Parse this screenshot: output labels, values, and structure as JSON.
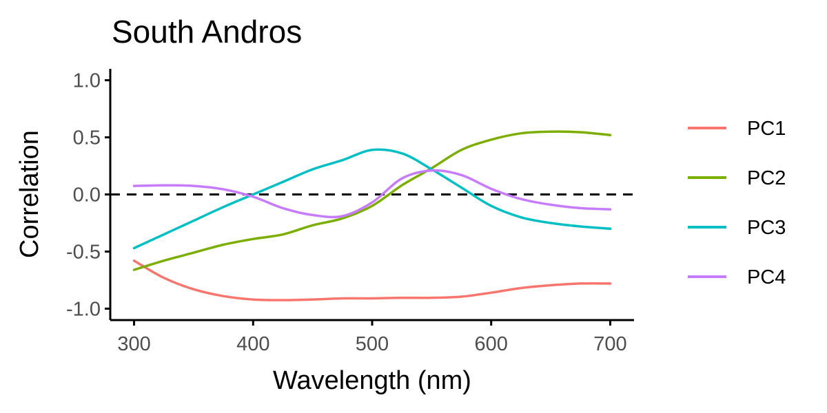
{
  "chart_data": {
    "type": "line",
    "title": "South Andros",
    "xlabel": "Wavelength (nm)",
    "ylabel": "Correlation",
    "xlim": [
      280,
      720
    ],
    "ylim": [
      -1.1,
      1.1
    ],
    "x_ticks": [
      300,
      400,
      500,
      600,
      700
    ],
    "x_tick_labels": [
      "300",
      "400",
      "500",
      "600",
      "700"
    ],
    "y_ticks": [
      1.0,
      0.5,
      0.0,
      -0.5,
      -1.0
    ],
    "y_tick_labels": [
      "1.0",
      "0.5",
      "0.0",
      "-0.5",
      "-1.0"
    ],
    "grid": false,
    "legend_position": "right",
    "reference_line": {
      "y": 0,
      "style": "dashed",
      "color": "#000000"
    },
    "x": [
      300,
      325,
      350,
      375,
      400,
      425,
      450,
      475,
      500,
      525,
      550,
      575,
      600,
      625,
      650,
      675,
      700
    ],
    "series": [
      {
        "name": "PC1",
        "color": "#F8766D",
        "values": [
          -0.58,
          -0.73,
          -0.83,
          -0.89,
          -0.92,
          -0.925,
          -0.92,
          -0.91,
          -0.91,
          -0.905,
          -0.905,
          -0.895,
          -0.86,
          -0.82,
          -0.795,
          -0.78,
          -0.78
        ]
      },
      {
        "name": "PC2",
        "color": "#7CAE00",
        "values": [
          -0.66,
          -0.58,
          -0.51,
          -0.44,
          -0.39,
          -0.35,
          -0.27,
          -0.21,
          -0.1,
          0.08,
          0.23,
          0.39,
          0.48,
          0.535,
          0.55,
          0.545,
          0.52
        ]
      },
      {
        "name": "PC3",
        "color": "#00BFC4",
        "values": [
          -0.47,
          -0.35,
          -0.23,
          -0.11,
          0.0,
          0.11,
          0.22,
          0.3,
          0.39,
          0.36,
          0.22,
          0.06,
          -0.1,
          -0.2,
          -0.25,
          -0.28,
          -0.3
        ]
      },
      {
        "name": "PC4",
        "color": "#C77CFF",
        "values": [
          0.075,
          0.08,
          0.075,
          0.045,
          -0.02,
          -0.12,
          -0.18,
          -0.19,
          -0.07,
          0.14,
          0.21,
          0.17,
          0.05,
          -0.04,
          -0.09,
          -0.12,
          -0.13
        ]
      }
    ]
  }
}
